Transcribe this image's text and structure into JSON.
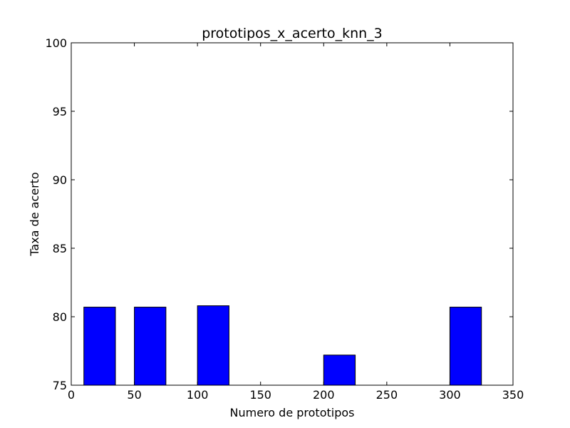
{
  "chart_data": {
    "type": "bar",
    "title": "prototipos_x_acerto_knn_3",
    "xlabel": "Numero de prototipos",
    "ylabel": "Taxa de acerto",
    "xlim": [
      0,
      350
    ],
    "ylim": [
      75,
      100
    ],
    "x_ticks": [
      "0",
      "50",
      "100",
      "150",
      "200",
      "250",
      "300",
      "350"
    ],
    "y_ticks": [
      "75",
      "80",
      "85",
      "90",
      "95",
      "100"
    ],
    "bar_width": 25,
    "bar_color": "#0000ff",
    "grid": false,
    "x": [
      10,
      50,
      100,
      200,
      300
    ],
    "values": [
      80.7,
      80.7,
      80.8,
      77.2,
      80.7
    ]
  }
}
